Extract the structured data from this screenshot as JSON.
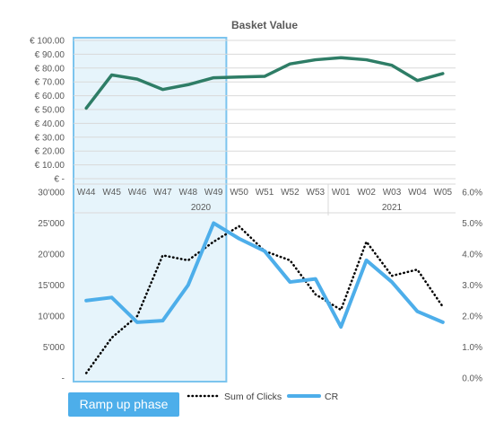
{
  "chart_data": [
    {
      "type": "line",
      "title": "Basket Value",
      "categories": [
        "W44",
        "W45",
        "W46",
        "W47",
        "W48",
        "W49",
        "W50",
        "W51",
        "W52",
        "W53",
        "W01",
        "W02",
        "W03",
        "W04",
        "W05"
      ],
      "year_groups": [
        {
          "label": "2020",
          "from": "W44",
          "to": "W53"
        },
        {
          "label": "2021",
          "from": "W01",
          "to": "W05"
        }
      ],
      "yticks": [
        "€ -",
        "€ 10.00",
        "€ 20.00",
        "€ 30.00",
        "€ 40.00",
        "€ 50.00",
        "€ 60.00",
        "€ 70.00",
        "€ 80.00",
        "€ 90.00",
        "€ 100.00"
      ],
      "ylim": [
        0,
        100
      ],
      "series": [
        {
          "values": [
            51,
            75,
            72,
            64.5,
            68,
            73,
            73.5,
            74,
            83,
            86,
            87.5,
            86,
            82,
            71,
            76
          ],
          "color": "#2E7D66"
        }
      ]
    },
    {
      "type": "line",
      "categories": [
        "W44",
        "W45",
        "W46",
        "W47",
        "W48",
        "W49",
        "W50",
        "W51",
        "W52",
        "W53",
        "W01",
        "W02",
        "W03",
        "W04",
        "W05"
      ],
      "left_yticks": [
        "-",
        "5'000",
        "10'000",
        "15'000",
        "20'000",
        "25'000",
        "30'000"
      ],
      "right_yticks": [
        "0.0%",
        "1.0%",
        "2.0%",
        "3.0%",
        "4.0%",
        "5.0%",
        "6.0%"
      ],
      "ylim_left": [
        0,
        30000
      ],
      "ylim_right": [
        0,
        0.06
      ],
      "series": [
        {
          "name": "Sum of Clicks",
          "axis": "left",
          "style": "dotted",
          "color": "#000000",
          "values": [
            800,
            6500,
            10000,
            19800,
            19000,
            22000,
            24500,
            20500,
            19000,
            13500,
            11000,
            22000,
            16500,
            17500,
            11500
          ]
        },
        {
          "name": "CR",
          "axis": "right",
          "style": "solid",
          "color": "#4DAEEA",
          "values": [
            0.025,
            0.026,
            0.018,
            0.0185,
            0.03,
            0.05,
            0.045,
            0.041,
            0.031,
            0.032,
            0.0165,
            0.038,
            0.031,
            0.0215,
            0.018
          ]
        }
      ],
      "annotation": {
        "label": "Ramp up phase",
        "from": "W44",
        "to": "W49"
      }
    }
  ],
  "colors": {
    "basket_line": "#2E7D66",
    "cr_line": "#4DAEEA",
    "clicks_line": "#000000",
    "highlight_fill": "#E6F4FB",
    "highlight_border": "#7CC4EE",
    "grid": "#D9D9D9",
    "text": "#595959"
  }
}
